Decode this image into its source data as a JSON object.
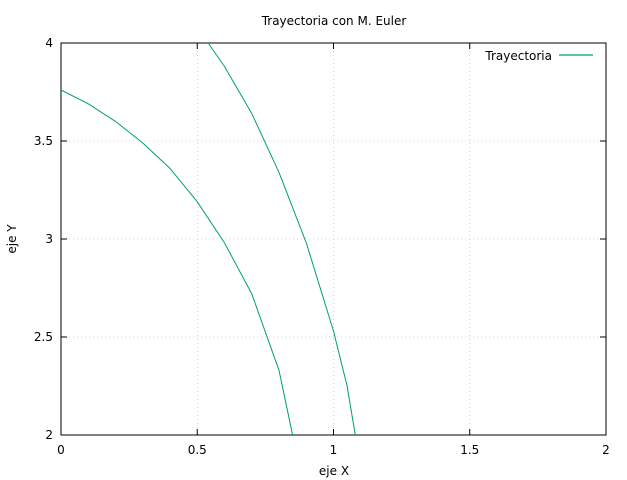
{
  "chart_data": {
    "type": "line",
    "title": "Trayectoria con M. Euler",
    "xlabel": "eje X",
    "ylabel": "eje Y",
    "xlim": [
      0,
      2
    ],
    "ylim": [
      2,
      4
    ],
    "grid": true,
    "legend_position": "top-right",
    "x_ticks": [
      {
        "value": 0,
        "label": "0"
      },
      {
        "value": 0.5,
        "label": "0.5"
      },
      {
        "value": 1,
        "label": "1"
      },
      {
        "value": 1.5,
        "label": "1.5"
      },
      {
        "value": 2,
        "label": "2"
      }
    ],
    "y_ticks": [
      {
        "value": 2,
        "label": "2"
      },
      {
        "value": 2.5,
        "label": "2.5"
      },
      {
        "value": 3,
        "label": "3"
      },
      {
        "value": 3.5,
        "label": "3.5"
      },
      {
        "value": 4,
        "label": "4"
      }
    ],
    "series": [
      {
        "name": "Trayectoria",
        "color": "#009e73",
        "segments": [
          [
            [
              0,
              3.76
            ],
            [
              0.1,
              3.69
            ],
            [
              0.2,
              3.6
            ],
            [
              0.3,
              3.49
            ],
            [
              0.4,
              3.36
            ],
            [
              0.5,
              3.19
            ],
            [
              0.6,
              2.98
            ],
            [
              0.7,
              2.72
            ],
            [
              0.8,
              2.33
            ],
            [
              0.85,
              2.0
            ]
          ],
          [
            [
              0.54,
              4.0
            ],
            [
              0.6,
              3.88
            ],
            [
              0.7,
              3.64
            ],
            [
              0.8,
              3.34
            ],
            [
              0.9,
              2.98
            ],
            [
              1.0,
              2.53
            ],
            [
              1.05,
              2.25
            ],
            [
              1.08,
              2.0
            ]
          ]
        ]
      }
    ]
  }
}
